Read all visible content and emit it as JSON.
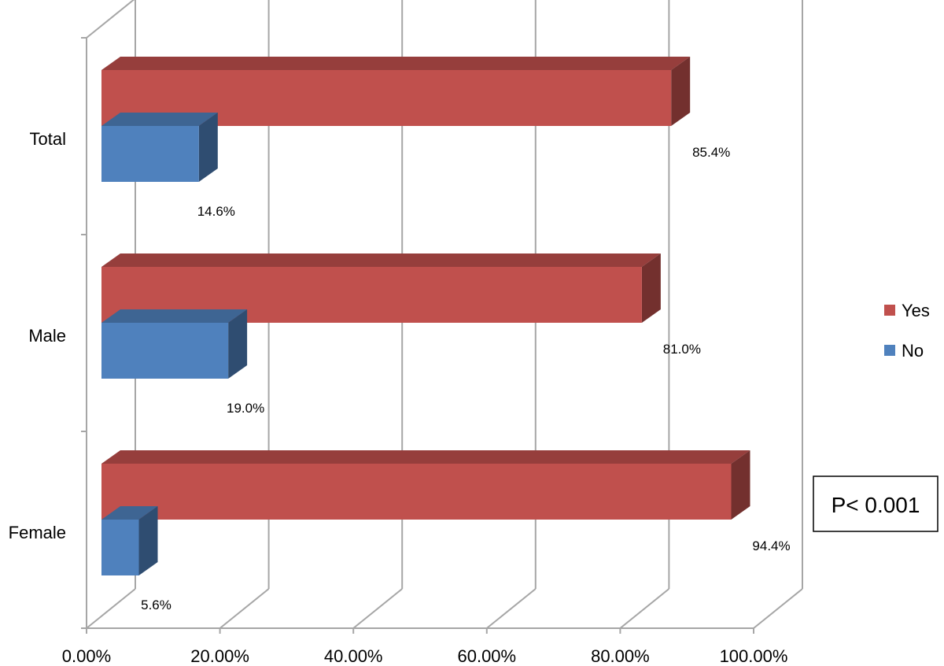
{
  "chart_data": {
    "type": "bar",
    "orientation": "horizontal",
    "style": "3d",
    "categories": [
      "Total",
      "Male",
      "Female"
    ],
    "series": [
      {
        "name": "Yes",
        "values": [
          85.4,
          81.0,
          94.4
        ],
        "labels": [
          "85.4%",
          "81.0%",
          "94.4%"
        ],
        "color": "#C0504D"
      },
      {
        "name": "No",
        "values": [
          14.6,
          19.0,
          5.6
        ],
        "labels": [
          "14.6%",
          "19.0%",
          "5.6%"
        ],
        "color": "#4F81BD"
      }
    ],
    "xlim": [
      0,
      100
    ],
    "x_ticks": [
      "0.00%",
      "20.00%",
      "40.00%",
      "60.00%",
      "80.00%",
      "100.00%"
    ],
    "grid": true,
    "legend_position": "right",
    "annotation": "P< 0.001"
  }
}
